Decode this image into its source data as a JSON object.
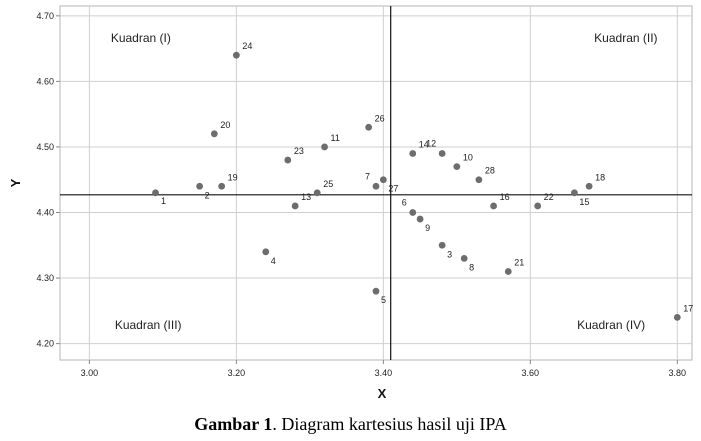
{
  "caption": {
    "bold": "Gambar 1",
    "rest": ". Diagram kartesius hasil uji IPA"
  },
  "chart_data": {
    "type": "scatter",
    "xlabel": "X",
    "ylabel": "Y",
    "xlim": [
      2.96,
      3.82
    ],
    "ylim": [
      4.175,
      4.715
    ],
    "x_ticks": [
      3.0,
      3.2,
      3.4,
      3.6,
      3.8
    ],
    "x_tick_labels": [
      "3.00",
      "3.20",
      "3.40",
      "3.60",
      "3.80"
    ],
    "y_ticks": [
      4.2,
      4.3,
      4.4,
      4.5,
      4.6,
      4.7
    ],
    "y_tick_labels": [
      "4.20",
      "4.30",
      "4.40",
      "4.50",
      "4.60",
      "4.70"
    ],
    "grid": true,
    "reference_lines": {
      "x": 3.41,
      "y": 4.427
    },
    "quadrants": [
      {
        "label": "Kuadran (I)",
        "x": 3.07,
        "y": 4.66
      },
      {
        "label": "Kuadran (II)",
        "x": 3.73,
        "y": 4.66
      },
      {
        "label": "Kuadran (III)",
        "x": 3.08,
        "y": 4.222
      },
      {
        "label": "Kuadran (IV)",
        "x": 3.71,
        "y": 4.222
      }
    ],
    "point_color": "#6d6d6d",
    "points": [
      {
        "label": "1",
        "x": 3.09,
        "y": 4.43,
        "pos": "below"
      },
      {
        "label": "2",
        "x": 3.15,
        "y": 4.44,
        "pos": "below-right"
      },
      {
        "label": "3",
        "x": 3.48,
        "y": 4.35,
        "pos": "below-right"
      },
      {
        "label": "4",
        "x": 3.24,
        "y": 4.34,
        "pos": "below-right"
      },
      {
        "label": "5",
        "x": 3.39,
        "y": 4.28,
        "pos": "below-right"
      },
      {
        "label": "6",
        "x": 3.44,
        "y": 4.4,
        "pos": "above-left"
      },
      {
        "label": "7",
        "x": 3.39,
        "y": 4.44,
        "pos": "above-left"
      },
      {
        "label": "8",
        "x": 3.51,
        "y": 4.33,
        "pos": "below-right"
      },
      {
        "label": "9",
        "x": 3.45,
        "y": 4.39,
        "pos": "below-right"
      },
      {
        "label": "10",
        "x": 3.5,
        "y": 4.47,
        "pos": "above-right"
      },
      {
        "label": "11",
        "x": 3.32,
        "y": 4.5,
        "pos": "above-right"
      },
      {
        "label": "12",
        "x": 3.48,
        "y": 4.49,
        "pos": "above-left"
      },
      {
        "label": "13",
        "x": 3.28,
        "y": 4.41,
        "pos": "above-right"
      },
      {
        "label": "14",
        "x": 3.44,
        "y": 4.49,
        "pos": "above-right"
      },
      {
        "label": "15",
        "x": 3.66,
        "y": 4.43,
        "pos": "below-right"
      },
      {
        "label": "16",
        "x": 3.55,
        "y": 4.41,
        "pos": "above-right"
      },
      {
        "label": "17",
        "x": 3.8,
        "y": 4.24,
        "pos": "above-right"
      },
      {
        "label": "18",
        "x": 3.68,
        "y": 4.44,
        "pos": "above-right"
      },
      {
        "label": "19",
        "x": 3.18,
        "y": 4.44,
        "pos": "above-right"
      },
      {
        "label": "20",
        "x": 3.17,
        "y": 4.52,
        "pos": "above-right"
      },
      {
        "label": "21",
        "x": 3.57,
        "y": 4.31,
        "pos": "above-right"
      },
      {
        "label": "22",
        "x": 3.61,
        "y": 4.41,
        "pos": "above-right"
      },
      {
        "label": "23",
        "x": 3.27,
        "y": 4.48,
        "pos": "above-right"
      },
      {
        "label": "24",
        "x": 3.2,
        "y": 4.64,
        "pos": "above-right"
      },
      {
        "label": "25",
        "x": 3.31,
        "y": 4.43,
        "pos": "above-right"
      },
      {
        "label": "26",
        "x": 3.38,
        "y": 4.53,
        "pos": "above-right"
      },
      {
        "label": "27",
        "x": 3.4,
        "y": 4.45,
        "pos": "below-right"
      },
      {
        "label": "28",
        "x": 3.53,
        "y": 4.45,
        "pos": "above-right"
      }
    ]
  }
}
